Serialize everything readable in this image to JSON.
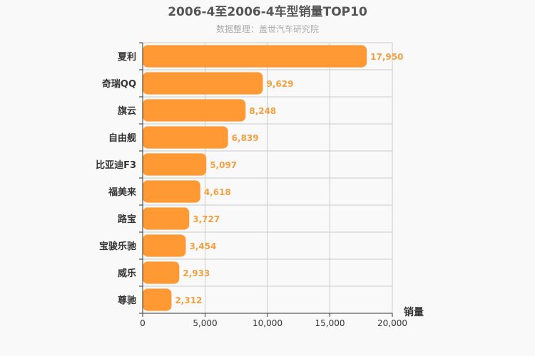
{
  "chart_data": {
    "type": "bar",
    "orientation": "horizontal",
    "title": "2006-4至2006-4车型销量TOP10",
    "subtitle": "数据整理：盖世汽车研究院",
    "xlabel": "销量",
    "ylabel": "",
    "categories": [
      "夏利",
      "奇瑞QQ",
      "旗云",
      "自由舰",
      "比亚迪F3",
      "福美来",
      "路宝",
      "宝骏乐驰",
      "威乐",
      "尊驰"
    ],
    "values": [
      17950,
      9629,
      8248,
      6839,
      5097,
      4618,
      3727,
      3454,
      2933,
      2312
    ],
    "value_labels": [
      "17,950",
      "9,629",
      "8,248",
      "6,839",
      "5,097",
      "4,618",
      "3,727",
      "3,454",
      "2,933",
      "2,312"
    ],
    "xlim": [
      0,
      20000
    ],
    "x_ticks": [
      0,
      5000,
      10000,
      15000,
      20000
    ],
    "x_tick_labels": [
      "0",
      "5,000",
      "10,000",
      "15,000",
      "20,000"
    ],
    "grid": true,
    "legend": "none",
    "colors": {
      "bar": "#ff9933",
      "data_label": "#f4a041",
      "grid": "#cccccc",
      "background": "#f9f9f9"
    }
  }
}
